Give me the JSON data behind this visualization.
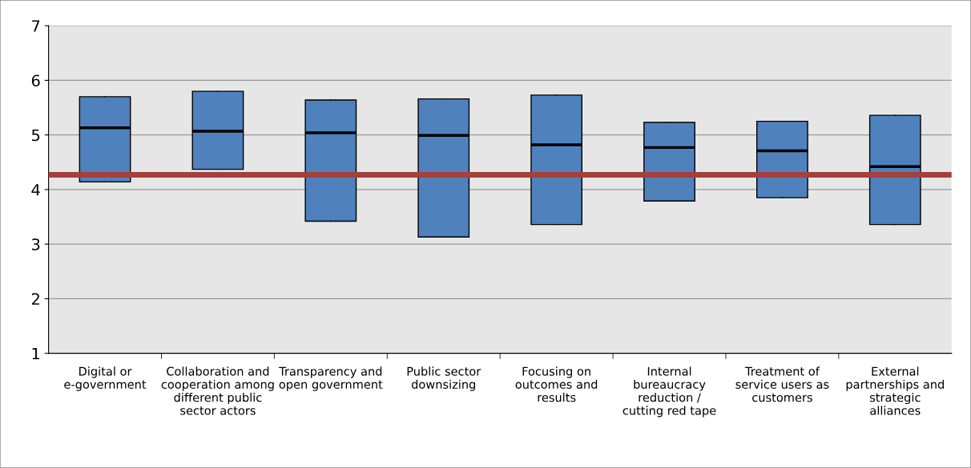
{
  "chart_data": {
    "type": "box",
    "categories": [
      "Digital or e-government",
      "Collaboration and cooperation among different public sector actors",
      "Transparency and open government",
      "Public sector downsizing",
      "Focusing on outcomes and results",
      "Internal bureaucracy reduction / cutting red tape",
      "Treatment of service users as customers",
      "External partnerships and strategic alliances"
    ],
    "boxes": [
      {
        "low": 4.14,
        "q1": 4.14,
        "median": 5.13,
        "q3": 5.7,
        "high": 5.7
      },
      {
        "low": 4.37,
        "q1": 4.37,
        "median": 5.07,
        "q3": 5.8,
        "high": 5.8
      },
      {
        "low": 3.42,
        "q1": 3.42,
        "median": 5.04,
        "q3": 5.64,
        "high": 5.64
      },
      {
        "low": 3.13,
        "q1": 3.13,
        "median": 4.99,
        "q3": 5.66,
        "high": 5.66
      },
      {
        "low": 3.36,
        "q1": 3.36,
        "median": 4.82,
        "q3": 5.73,
        "high": 5.73
      },
      {
        "low": 3.79,
        "q1": 3.79,
        "median": 4.77,
        "q3": 5.23,
        "high": 5.23
      },
      {
        "low": 3.85,
        "q1": 3.85,
        "median": 4.71,
        "q3": 5.25,
        "high": 5.25
      },
      {
        "low": 3.36,
        "q1": 3.36,
        "median": 4.42,
        "q3": 5.36,
        "high": 5.36
      }
    ],
    "color": "#4f81bd",
    "ylim": [
      1,
      7
    ],
    "yticks": [
      1,
      2,
      3,
      4,
      5,
      6,
      7
    ],
    "grid": "y",
    "ref_lines": [
      {
        "axis": "y",
        "value": 4.27,
        "label": null,
        "color": "#a5403c"
      }
    ]
  }
}
